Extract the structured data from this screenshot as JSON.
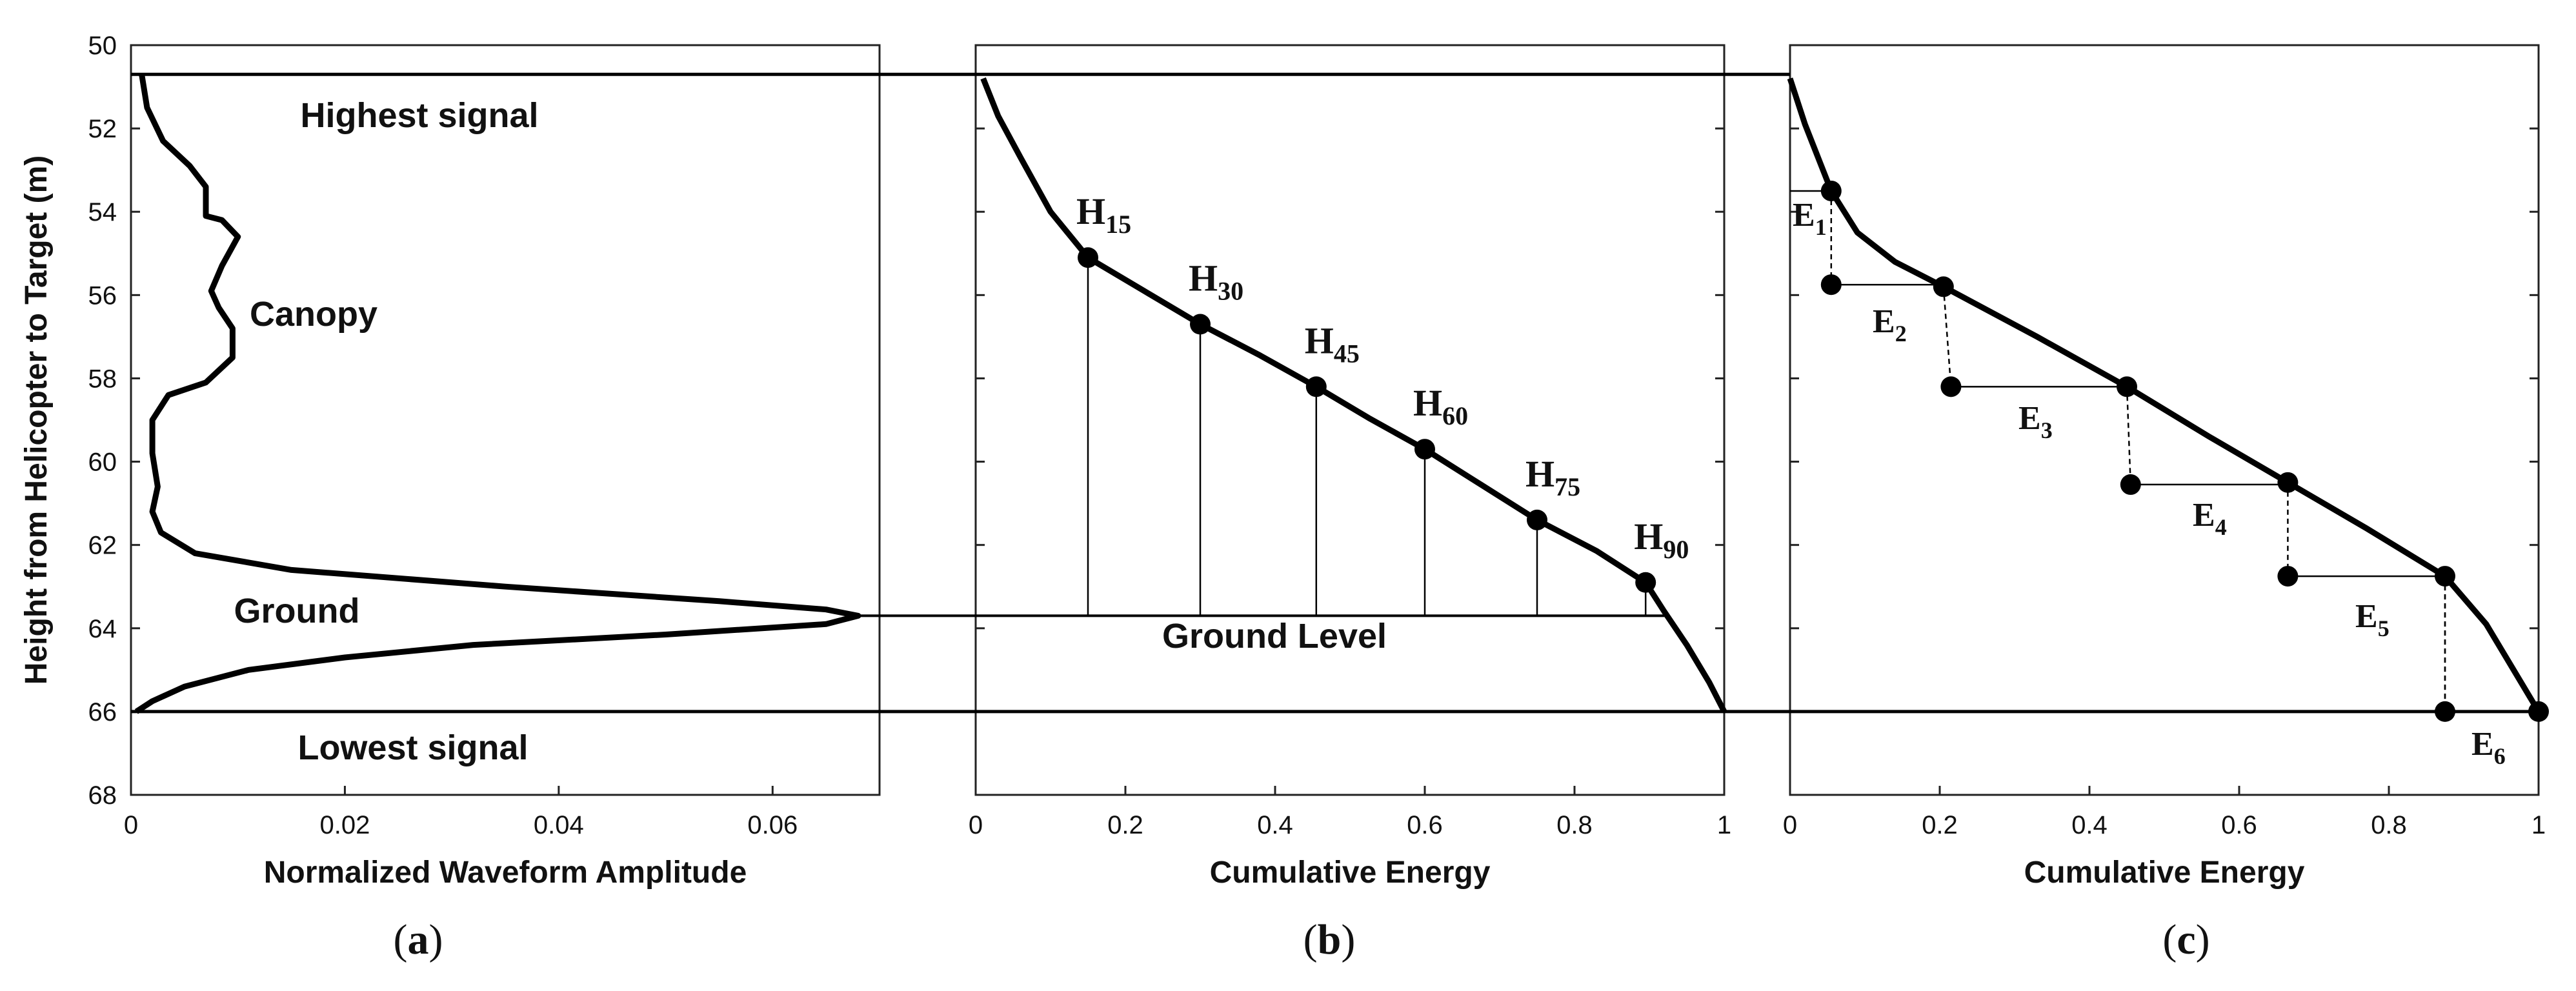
{
  "chart_data": [
    {
      "panel": "a",
      "type": "line",
      "panel_label": {
        "open": "(",
        "letter": "a",
        "close": ")"
      },
      "xlabel": "Normalized Waveform Amplitude",
      "ylabel": "Height from Helicopter to Target (m)",
      "xlim": [
        0,
        0.07
      ],
      "ylim": [
        68,
        50
      ],
      "xticks": [
        0,
        0.02,
        0.04,
        0.06
      ],
      "xtick_labels": [
        "0",
        "0.02",
        "0.04",
        "0.06"
      ],
      "yticks": [
        50,
        52,
        54,
        56,
        58,
        60,
        62,
        64,
        66,
        68
      ],
      "ytick_labels": [
        "50",
        "52",
        "54",
        "56",
        "58",
        "60",
        "62",
        "64",
        "66",
        "68"
      ],
      "series": [
        {
          "name": "waveform",
          "points": [
            [
              0.001,
              50.7
            ],
            [
              0.0015,
              51.5
            ],
            [
              0.003,
              52.3
            ],
            [
              0.0055,
              52.9
            ],
            [
              0.007,
              53.4
            ],
            [
              0.007,
              54.1
            ],
            [
              0.0085,
              54.2
            ],
            [
              0.01,
              54.6
            ],
            [
              0.0085,
              55.3
            ],
            [
              0.0075,
              55.9
            ],
            [
              0.0082,
              56.3
            ],
            [
              0.0095,
              56.8
            ],
            [
              0.0095,
              57.5
            ],
            [
              0.007,
              58.1
            ],
            [
              0.0035,
              58.4
            ],
            [
              0.002,
              59.0
            ],
            [
              0.002,
              59.8
            ],
            [
              0.0025,
              60.6
            ],
            [
              0.002,
              61.2
            ],
            [
              0.0028,
              61.7
            ],
            [
              0.006,
              62.2
            ],
            [
              0.015,
              62.6
            ],
            [
              0.035,
              63.0
            ],
            [
              0.055,
              63.35
            ],
            [
              0.065,
              63.55
            ],
            [
              0.068,
              63.7
            ],
            [
              0.065,
              63.9
            ],
            [
              0.05,
              64.15
            ],
            [
              0.032,
              64.4
            ],
            [
              0.02,
              64.7
            ],
            [
              0.011,
              65.0
            ],
            [
              0.005,
              65.4
            ],
            [
              0.002,
              65.75
            ],
            [
              0.0005,
              66.0
            ]
          ]
        }
      ],
      "hlines": [
        {
          "y": 50.7,
          "label": "Highest signal"
        },
        {
          "y": 63.7,
          "label": "Ground"
        },
        {
          "y": 66.0,
          "label": "Lowest signal"
        }
      ],
      "annotations": [
        "Highest signal",
        "Canopy",
        "Ground",
        "Lowest signal"
      ]
    },
    {
      "panel": "b",
      "type": "line",
      "panel_label": {
        "open": "(",
        "letter": "b",
        "close": ")"
      },
      "xlabel": "Cumulative Energy",
      "xlim": [
        0,
        1
      ],
      "ylim": [
        68,
        50
      ],
      "xticks": [
        0,
        0.2,
        0.4,
        0.6,
        0.8,
        1
      ],
      "xtick_labels": [
        "0",
        "0.2",
        "0.4",
        "0.6",
        "0.8",
        "1"
      ],
      "series": [
        {
          "name": "cumulative energy",
          "points": [
            [
              0.01,
              50.8
            ],
            [
              0.03,
              51.7
            ],
            [
              0.06,
              52.7
            ],
            [
              0.1,
              54.0
            ],
            [
              0.15,
              55.1
            ],
            [
              0.225,
              55.9
            ],
            [
              0.3,
              56.7
            ],
            [
              0.38,
              57.45
            ],
            [
              0.455,
              58.2
            ],
            [
              0.525,
              58.95
            ],
            [
              0.6,
              59.7
            ],
            [
              0.675,
              60.55
            ],
            [
              0.75,
              61.4
            ],
            [
              0.83,
              62.15
            ],
            [
              0.895,
              62.9
            ],
            [
              0.92,
              63.6
            ],
            [
              0.95,
              64.4
            ],
            [
              0.98,
              65.3
            ],
            [
              1.0,
              66.0
            ]
          ]
        }
      ],
      "markers": [
        {
          "label": "H",
          "sub": "15",
          "x": 0.15,
          "y": 55.1
        },
        {
          "label": "H",
          "sub": "30",
          "x": 0.3,
          "y": 56.7
        },
        {
          "label": "H",
          "sub": "45",
          "x": 0.455,
          "y": 58.2
        },
        {
          "label": "H",
          "sub": "60",
          "x": 0.6,
          "y": 59.7
        },
        {
          "label": "H",
          "sub": "75",
          "x": 0.75,
          "y": 61.4
        },
        {
          "label": "H",
          "sub": "90",
          "x": 0.895,
          "y": 62.9
        }
      ],
      "annotations": [
        "Ground Level"
      ]
    },
    {
      "panel": "c",
      "type": "line",
      "panel_label": {
        "open": "(",
        "letter": "c",
        "close": ")"
      },
      "xlabel": "Cumulative Energy",
      "xlim": [
        0,
        1
      ],
      "ylim": [
        68,
        50
      ],
      "xticks": [
        0,
        0.2,
        0.4,
        0.6,
        0.8,
        1
      ],
      "xtick_labels": [
        "0",
        "0.2",
        "0.4",
        "0.6",
        "0.8",
        "1"
      ],
      "series": [
        {
          "name": "cumulative energy",
          "points": [
            [
              0.0,
              50.8
            ],
            [
              0.02,
              51.9
            ],
            [
              0.055,
              53.5
            ],
            [
              0.09,
              54.5
            ],
            [
              0.14,
              55.2
            ],
            [
              0.205,
              55.8
            ],
            [
              0.33,
              57.0
            ],
            [
              0.45,
              58.2
            ],
            [
              0.56,
              59.4
            ],
            [
              0.665,
              60.5
            ],
            [
              0.77,
              61.6
            ],
            [
              0.875,
              62.75
            ],
            [
              0.93,
              63.9
            ],
            [
              0.97,
              65.1
            ],
            [
              1.0,
              66.0
            ]
          ]
        }
      ],
      "points_on_curve": [
        [
          0.055,
          53.5
        ],
        [
          0.205,
          55.8
        ],
        [
          0.45,
          58.2
        ],
        [
          0.665,
          60.5
        ],
        [
          0.875,
          62.75
        ],
        [
          1.0,
          66.0
        ]
      ],
      "step_points": [
        [
          0.055,
          55.75
        ],
        [
          0.215,
          58.2
        ],
        [
          0.455,
          60.55
        ],
        [
          0.665,
          62.75
        ],
        [
          0.875,
          66.0
        ]
      ],
      "segments": [
        {
          "label": "E",
          "sub": "1"
        },
        {
          "label": "E",
          "sub": "2"
        },
        {
          "label": "E",
          "sub": "3"
        },
        {
          "label": "E",
          "sub": "4"
        },
        {
          "label": "E",
          "sub": "5"
        },
        {
          "label": "E",
          "sub": "6"
        }
      ]
    }
  ]
}
